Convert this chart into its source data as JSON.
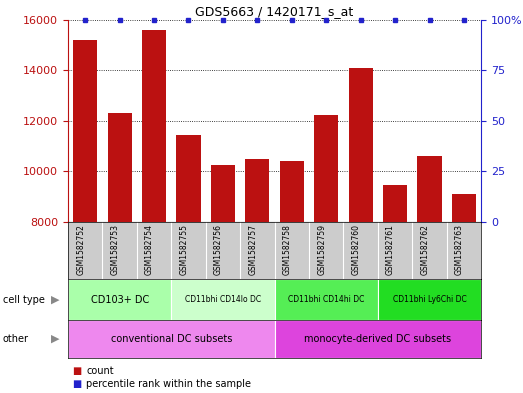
{
  "title": "GDS5663 / 1420171_s_at",
  "samples": [
    "GSM1582752",
    "GSM1582753",
    "GSM1582754",
    "GSM1582755",
    "GSM1582756",
    "GSM1582757",
    "GSM1582758",
    "GSM1582759",
    "GSM1582760",
    "GSM1582761",
    "GSM1582762",
    "GSM1582763"
  ],
  "counts": [
    15200,
    12300,
    15600,
    11450,
    10250,
    10500,
    10400,
    12250,
    14100,
    9450,
    10600,
    9100
  ],
  "percentiles": [
    100,
    100,
    100,
    100,
    100,
    100,
    100,
    100,
    100,
    100,
    100,
    100
  ],
  "bar_color": "#bb1111",
  "dot_color": "#2222cc",
  "ylim_left": [
    8000,
    16000
  ],
  "ylim_right": [
    0,
    100
  ],
  "yticks_left": [
    8000,
    10000,
    12000,
    14000,
    16000
  ],
  "yticks_right": [
    0,
    25,
    50,
    75,
    100
  ],
  "cell_type_labels": [
    {
      "label": "CD103+ DC",
      "start": 0,
      "end": 3,
      "color": "#aaffaa"
    },
    {
      "label": "CD11bhi CD14lo DC",
      "start": 3,
      "end": 6,
      "color": "#ccffcc"
    },
    {
      "label": "CD11bhi CD14hi DC",
      "start": 6,
      "end": 9,
      "color": "#55ee55"
    },
    {
      "label": "CD11bhi Ly6Chi DC",
      "start": 9,
      "end": 12,
      "color": "#22dd22"
    }
  ],
  "other_labels": [
    {
      "label": "conventional DC subsets",
      "start": 0,
      "end": 6,
      "color": "#ee88ee"
    },
    {
      "label": "monocyte-derived DC subsets",
      "start": 6,
      "end": 12,
      "color": "#dd44dd"
    }
  ],
  "tick_area_color": "#cccccc",
  "legend_count_color": "#bb1111",
  "legend_percentile_color": "#2222cc"
}
